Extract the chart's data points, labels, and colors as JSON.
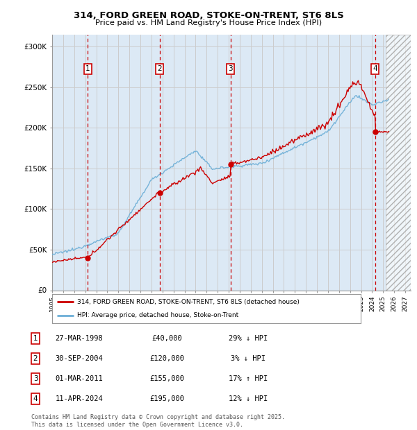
{
  "title_line1": "314, FORD GREEN ROAD, STOKE-ON-TRENT, ST6 8LS",
  "title_line2": "Price paid vs. HM Land Registry's House Price Index (HPI)",
  "ylabel_ticks": [
    "£0",
    "£50K",
    "£100K",
    "£150K",
    "£200K",
    "£250K",
    "£300K"
  ],
  "ytick_values": [
    0,
    50000,
    100000,
    150000,
    200000,
    250000,
    300000
  ],
  "ylim": [
    0,
    315000
  ],
  "xlim_start": 1995.0,
  "xlim_end": 2027.5,
  "sale_dates": [
    1998.23,
    2004.75,
    2011.17,
    2024.28
  ],
  "sale_prices": [
    40000,
    120000,
    155000,
    195000
  ],
  "sale_labels": [
    "1",
    "2",
    "3",
    "4"
  ],
  "legend_line1": "314, FORD GREEN ROAD, STOKE-ON-TRENT, ST6 8LS (detached house)",
  "legend_line2": "HPI: Average price, detached house, Stoke-on-Trent",
  "table_data": [
    [
      "1",
      "27-MAR-1998",
      "£40,000",
      "29% ↓ HPI"
    ],
    [
      "2",
      "30-SEP-2004",
      "£120,000",
      "3% ↓ HPI"
    ],
    [
      "3",
      "01-MAR-2011",
      "£155,000",
      "17% ↑ HPI"
    ],
    [
      "4",
      "11-APR-2024",
      "£195,000",
      "12% ↓ HPI"
    ]
  ],
  "footer": "Contains HM Land Registry data © Crown copyright and database right 2025.\nThis data is licensed under the Open Government Licence v3.0.",
  "hpi_color": "#6baed6",
  "price_color": "#cc0000",
  "sale_marker_color": "#cc0000",
  "grid_color": "#cccccc",
  "vline_color": "#cc0000",
  "background_color": "#ffffff",
  "plot_bg_color": "#dce9f5",
  "future_start": 2025.25
}
